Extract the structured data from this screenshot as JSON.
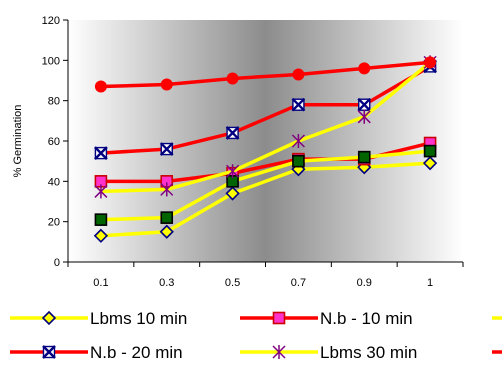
{
  "chart_data": {
    "type": "line",
    "ylabel": "% Germination",
    "xlabel": "",
    "x": [
      "0.1",
      "0.3",
      "0.5",
      "0.7",
      "0.9",
      "1"
    ],
    "ylim": [
      0,
      120
    ],
    "yticks": [
      0,
      20,
      40,
      60,
      80,
      100,
      120
    ],
    "grid": false,
    "legend_position": "bottom",
    "plot_background": "gradient-white-grey-white",
    "series": [
      {
        "name": "Lbms 10 min",
        "values": [
          13,
          15,
          34,
          46,
          47,
          49
        ],
        "line_color": "#ffff00",
        "marker": "diamond",
        "marker_fill": "#ffff00",
        "marker_stroke": "#000080"
      },
      {
        "name": "N.b - 10 min",
        "values": [
          40,
          40,
          44,
          51,
          51,
          59
        ],
        "line_color": "#ff0000",
        "marker": "square",
        "marker_fill": "#ff33cc",
        "marker_stroke": "#cc0000"
      },
      {
        "name": "",
        "values": [
          21,
          22,
          40,
          50,
          52,
          55
        ],
        "line_color": "#ffff00",
        "marker": "square",
        "marker_fill": "#006400",
        "marker_stroke": "#000000"
      },
      {
        "name": "N.b - 20 min",
        "values": [
          54,
          56,
          64,
          78,
          78,
          97
        ],
        "line_color": "#ff0000",
        "marker": "x-box",
        "marker_fill": "#000080",
        "marker_stroke": "#000080"
      },
      {
        "name": "Lbms 30 min",
        "values": [
          35,
          36,
          45,
          60,
          72,
          99
        ],
        "line_color": "#ffff00",
        "marker": "asterisk",
        "marker_fill": "none",
        "marker_stroke": "#800080"
      },
      {
        "name": "",
        "values": [
          87,
          88,
          91,
          93,
          96,
          99
        ],
        "line_color": "#ff0000",
        "marker": "circle",
        "marker_fill": "#ff0000",
        "marker_stroke": "#ff0000"
      }
    ]
  }
}
